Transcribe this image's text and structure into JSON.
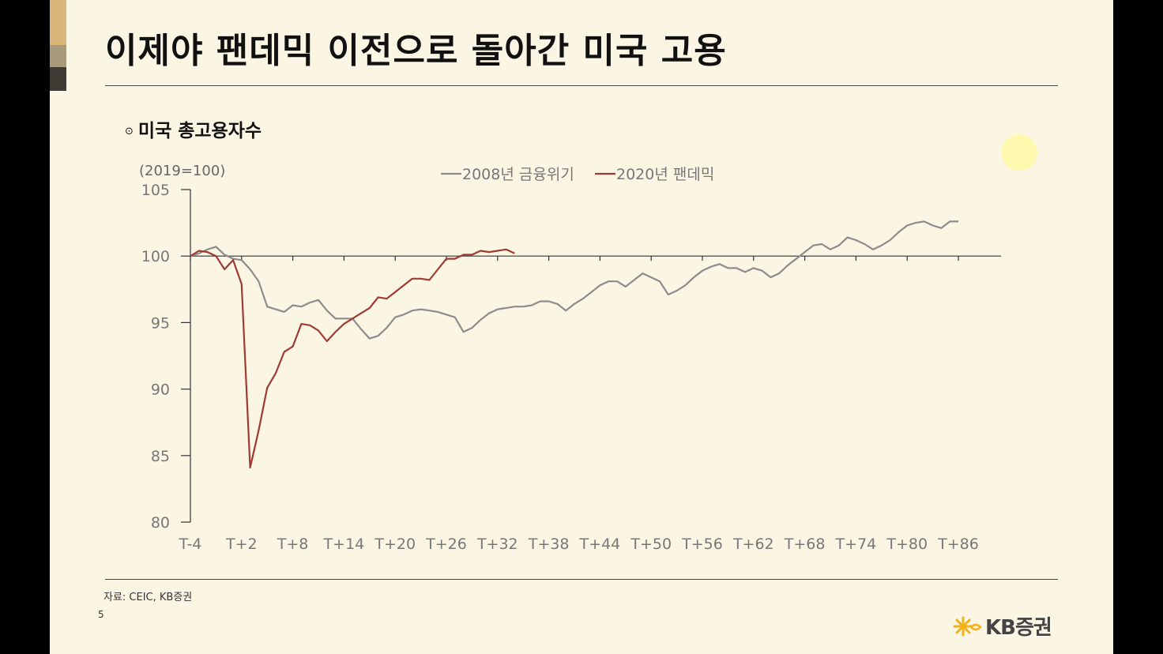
{
  "slide": {
    "title": "이제야 팬데믹 이전으로 돌아간 미국 고용",
    "subtitle_bullet": "⊙",
    "subtitle": "미국 총고용자수",
    "source": "자료: CEIC, KB증권",
    "page_number": "5",
    "logo_text": "KB증권"
  },
  "colors": {
    "series_2008": "#8c8c8c",
    "series_2020": "#9e3a32",
    "axis": "#333333",
    "background": "#fbf6e4"
  },
  "chart_data": {
    "type": "line",
    "unit_label": "(2019=100)",
    "ylim": [
      80,
      105
    ],
    "yticks": [
      80,
      85,
      90,
      95,
      100,
      105
    ],
    "x_start": -4,
    "xlim": [
      -4,
      91
    ],
    "xtick_labels": [
      "T-4",
      "T+2",
      "T+8",
      "T+14",
      "T+20",
      "T+26",
      "T+32",
      "T+38",
      "T+44",
      "T+50",
      "T+56",
      "T+62",
      "T+68",
      "T+74",
      "T+80",
      "T+86"
    ],
    "xtick_positions": [
      -4,
      2,
      8,
      14,
      20,
      26,
      32,
      38,
      44,
      50,
      56,
      62,
      68,
      74,
      80,
      86
    ],
    "reference_line": 100,
    "legend_position": "top-center",
    "series": [
      {
        "name": "2008년 금융위기",
        "color": "#8c8c8c",
        "values": [
          100.0,
          100.2,
          100.5,
          100.7,
          100.1,
          99.8,
          99.7,
          99.0,
          98.1,
          96.2,
          96.0,
          95.8,
          96.3,
          96.2,
          96.5,
          96.7,
          95.9,
          95.3,
          95.3,
          95.3,
          94.5,
          93.8,
          94.0,
          94.6,
          95.4,
          95.6,
          95.9,
          96.0,
          95.9,
          95.8,
          95.6,
          95.4,
          94.3,
          94.6,
          95.2,
          95.7,
          96.0,
          96.1,
          96.2,
          96.2,
          96.3,
          96.6,
          96.6,
          96.4,
          95.9,
          96.4,
          96.8,
          97.3,
          97.8,
          98.1,
          98.1,
          97.7,
          98.2,
          98.7,
          98.4,
          98.1,
          97.1,
          97.4,
          97.8,
          98.4,
          98.9,
          99.2,
          99.4,
          99.1,
          99.1,
          98.8,
          99.1,
          98.9,
          98.4,
          98.7,
          99.3,
          99.8,
          100.3,
          100.8,
          100.9,
          100.5,
          100.8,
          101.4,
          101.2,
          100.9,
          100.5,
          100.8,
          101.2,
          101.8,
          102.3,
          102.5,
          102.6,
          102.3,
          102.1,
          102.6,
          102.6
        ]
      },
      {
        "name": "2020년 팬데믹",
        "color": "#9e3a32",
        "values": [
          100.0,
          100.4,
          100.3,
          100.0,
          99.0,
          99.7,
          97.9,
          84.1,
          86.9,
          90.1,
          91.2,
          92.8,
          93.2,
          94.9,
          94.8,
          94.4,
          93.6,
          94.3,
          94.9,
          95.3,
          95.7,
          96.1,
          96.9,
          96.8,
          97.3,
          97.8,
          98.3,
          98.3,
          98.2,
          99.0,
          99.8,
          99.8,
          100.1,
          100.1,
          100.4,
          100.3,
          100.4,
          100.5,
          100.2
        ]
      }
    ]
  }
}
